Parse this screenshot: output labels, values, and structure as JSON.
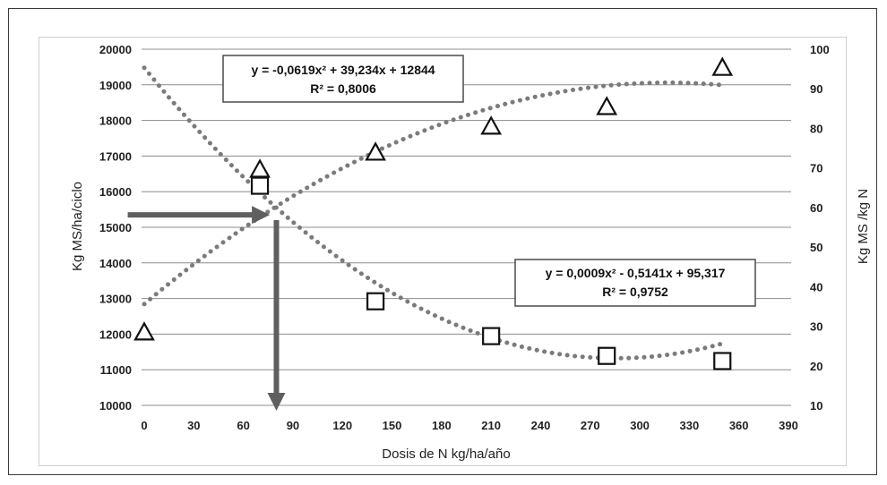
{
  "chart_data": {
    "type": "scatter",
    "xlabel": "Dosis de N kg/ha/año",
    "ylabel_left": "Kg MS/ha/ciclo",
    "ylabel_right": "Kg MS /kg N",
    "x_ticks": [
      "0",
      "30",
      "60",
      "90",
      "120",
      "150",
      "180",
      "210",
      "240",
      "270",
      "300",
      "330",
      "360",
      "390"
    ],
    "y_left_ticks": [
      "10000",
      "11000",
      "12000",
      "13000",
      "14000",
      "15000",
      "16000",
      "17000",
      "18000",
      "19000",
      "20000"
    ],
    "y_right_ticks": [
      "10",
      "20",
      "30",
      "40",
      "50",
      "60",
      "70",
      "80",
      "90",
      "100"
    ],
    "xlim": [
      0,
      390
    ],
    "ylim_left": [
      10000,
      20000
    ],
    "ylim_right": [
      10,
      100
    ],
    "grid": true,
    "series": [
      {
        "marker": "triangle",
        "axis": "left",
        "x": [
          0,
          70,
          140,
          210,
          280,
          350
        ],
        "y": [
          12050,
          16620,
          17100,
          17830,
          18380,
          19480
        ],
        "trendline": {
          "equation": "y = -0,0619x² + 39,234x + 12844",
          "r2": "R² = 0,8006",
          "a": -0.0619,
          "b": 39.234,
          "c": 12844
        }
      },
      {
        "marker": "square",
        "axis": "right",
        "x": [
          70,
          140,
          210,
          280,
          350
        ],
        "y": [
          65.5,
          36.3,
          27.5,
          22.5,
          21.2
        ],
        "trendline": {
          "equation": "y = 0,0009x² - 0,5141x + 95,317",
          "r2": "R² = 0,9752",
          "a": 0.0009,
          "b": -0.5141,
          "c": 95.317
        }
      }
    ],
    "annotations": [
      {
        "kind": "arrow",
        "from_x": -10,
        "from_y_left": 15350,
        "to_x": 76,
        "to_y_left": 15350
      },
      {
        "kind": "arrow",
        "from_x": 80,
        "from_y_left": 15200,
        "to_x": 80,
        "to_y_left": 9850
      }
    ]
  }
}
